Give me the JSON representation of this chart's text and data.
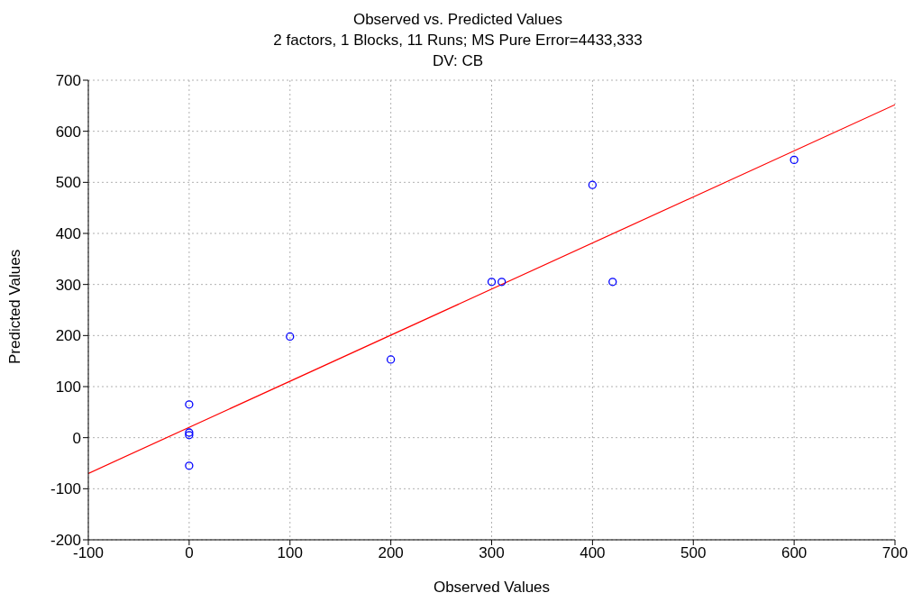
{
  "chart_data": {
    "type": "scatter",
    "title": "Observed vs. Predicted Values",
    "subtitle": "2 factors, 1 Blocks, 11 Runs; MS Pure Error=4433,333",
    "annotations": [
      "DV: CB"
    ],
    "xlabel": "Observed Values",
    "ylabel": "Predicted Values",
    "series": [
      {
        "marker": "circle",
        "color": "#0000ff",
        "x": [
          0,
          0,
          0,
          0,
          100,
          200,
          300,
          310,
          400,
          420,
          600
        ],
        "values": [
          65,
          10,
          5,
          -55,
          198,
          153,
          305,
          305,
          495,
          305,
          544
        ]
      },
      {
        "type": "line",
        "color": "#ff0000",
        "x": [
          -100,
          700
        ],
        "values": [
          -70,
          652
        ]
      }
    ],
    "grid": true,
    "xlim": [
      -100,
      700
    ],
    "xticks": [
      -100,
      0,
      100,
      200,
      300,
      400,
      500,
      600,
      700
    ],
    "ylim": [
      -200,
      700
    ],
    "yticks": [
      -200,
      -100,
      0,
      100,
      200,
      300,
      400,
      500,
      600,
      700
    ]
  }
}
